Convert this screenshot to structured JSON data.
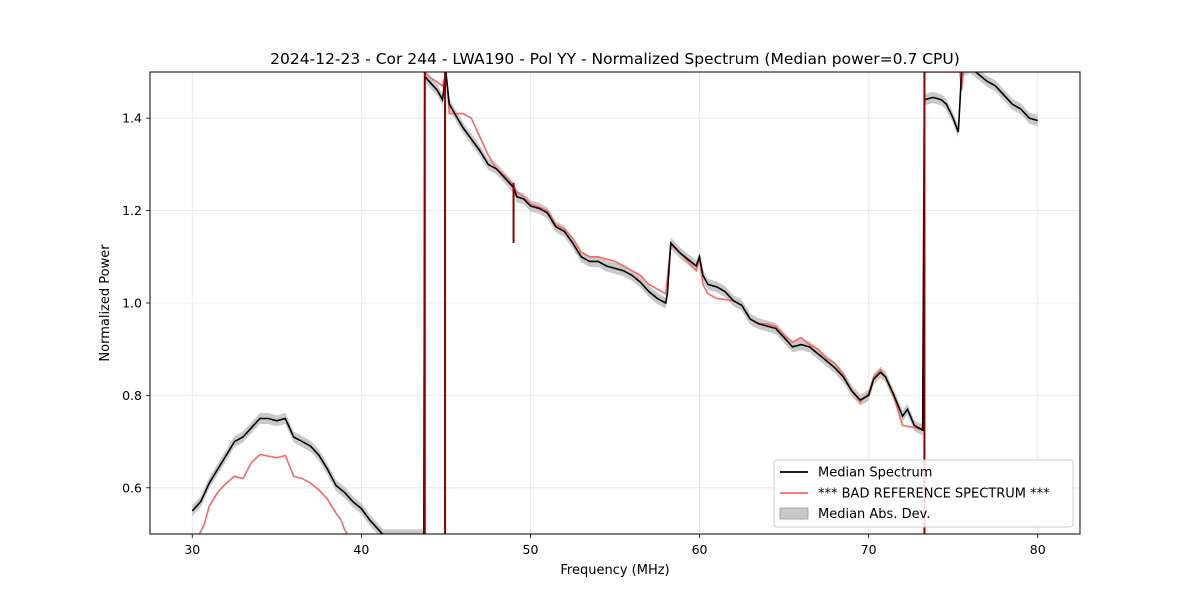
{
  "chart_data": {
    "type": "line",
    "title": "2024-12-23 - Cor 244 - LWA190 - Pol YY - Normalized Spectrum (Median power=0.7 CPU)",
    "xlabel": "Frequency (MHz)",
    "ylabel": "Normalized Power",
    "xlim": [
      27.5,
      82.5
    ],
    "ylim": [
      0.5,
      1.5
    ],
    "xticks": [
      30,
      40,
      50,
      60,
      70,
      80
    ],
    "yticks": [
      0.6,
      0.8,
      1.0,
      1.2,
      1.4
    ],
    "xtick_labels": [
      "30",
      "40",
      "50",
      "60",
      "70",
      "80"
    ],
    "ytick_labels": [
      "0.6",
      "0.8",
      "1.0",
      "1.2",
      "1.4"
    ],
    "grid": true,
    "legend_position": "bottom-right",
    "series": [
      {
        "name": "Median Spectrum",
        "color": "#000000",
        "points": [
          [
            30,
            0.55
          ],
          [
            30.5,
            0.57
          ],
          [
            31,
            0.61
          ],
          [
            31.5,
            0.64
          ],
          [
            32,
            0.67
          ],
          [
            32.5,
            0.7
          ],
          [
            33,
            0.71
          ],
          [
            33.5,
            0.73
          ],
          [
            34,
            0.75
          ],
          [
            34.5,
            0.75
          ],
          [
            35,
            0.745
          ],
          [
            35.5,
            0.75
          ],
          [
            36,
            0.71
          ],
          [
            36.5,
            0.7
          ],
          [
            37,
            0.69
          ],
          [
            37.5,
            0.67
          ],
          [
            38,
            0.64
          ],
          [
            38.5,
            0.605
          ],
          [
            39,
            0.59
          ],
          [
            39.5,
            0.57
          ],
          [
            40,
            0.555
          ],
          [
            40.5,
            0.53
          ],
          [
            41,
            0.51
          ],
          [
            41.3,
            0.498
          ],
          [
            43.7,
            0.498
          ],
          [
            43.75,
            1.49
          ],
          [
            44,
            1.48
          ],
          [
            44.5,
            1.46
          ],
          [
            44.8,
            1.44
          ],
          [
            45,
            1.5
          ],
          [
            45.2,
            1.43
          ],
          [
            46,
            1.38
          ],
          [
            47,
            1.33
          ],
          [
            47.5,
            1.3
          ],
          [
            48,
            1.29
          ],
          [
            48.5,
            1.27
          ],
          [
            49,
            1.25
          ],
          [
            49.2,
            1.23
          ],
          [
            49.6,
            1.225
          ],
          [
            50,
            1.21
          ],
          [
            50.5,
            1.205
          ],
          [
            51,
            1.195
          ],
          [
            51.5,
            1.165
          ],
          [
            52,
            1.155
          ],
          [
            52.5,
            1.13
          ],
          [
            53,
            1.1
          ],
          [
            53.5,
            1.09
          ],
          [
            54,
            1.09
          ],
          [
            54.5,
            1.08
          ],
          [
            55,
            1.075
          ],
          [
            55.5,
            1.07
          ],
          [
            56,
            1.06
          ],
          [
            56.5,
            1.045
          ],
          [
            57,
            1.025
          ],
          [
            57.5,
            1.01
          ],
          [
            58,
            1.0
          ],
          [
            58.1,
            1.02
          ],
          [
            58.3,
            1.13
          ],
          [
            58.8,
            1.11
          ],
          [
            59.3,
            1.095
          ],
          [
            59.8,
            1.08
          ],
          [
            60,
            1.1
          ],
          [
            60.2,
            1.06
          ],
          [
            60.5,
            1.04
          ],
          [
            61,
            1.035
          ],
          [
            61.5,
            1.025
          ],
          [
            62,
            1.005
          ],
          [
            62.5,
            0.995
          ],
          [
            63,
            0.965
          ],
          [
            63.5,
            0.955
          ],
          [
            64,
            0.95
          ],
          [
            64.5,
            0.945
          ],
          [
            65,
            0.925
          ],
          [
            65.5,
            0.905
          ],
          [
            66,
            0.91
          ],
          [
            66.5,
            0.905
          ],
          [
            67,
            0.89
          ],
          [
            67.5,
            0.875
          ],
          [
            68,
            0.86
          ],
          [
            68.5,
            0.84
          ],
          [
            69,
            0.81
          ],
          [
            69.5,
            0.79
          ],
          [
            70,
            0.8
          ],
          [
            70.3,
            0.835
          ],
          [
            70.7,
            0.85
          ],
          [
            71,
            0.84
          ],
          [
            71.5,
            0.8
          ],
          [
            72,
            0.755
          ],
          [
            72.3,
            0.77
          ],
          [
            72.7,
            0.735
          ],
          [
            73.2,
            0.725
          ],
          [
            73.3,
            1.44
          ],
          [
            73.8,
            1.445
          ],
          [
            74.3,
            1.44
          ],
          [
            74.6,
            1.43
          ],
          [
            75,
            1.4
          ],
          [
            75.3,
            1.37
          ],
          [
            75.5,
            1.5
          ],
          [
            76,
            1.51
          ],
          [
            77,
            1.48
          ],
          [
            77.5,
            1.47
          ],
          [
            78,
            1.45
          ],
          [
            78.5,
            1.43
          ],
          [
            79,
            1.42
          ],
          [
            79.5,
            1.4
          ],
          [
            80,
            1.395
          ]
        ]
      },
      {
        "name": "*** BAD REFERENCE SPECTRUM ***",
        "color": "#ff6666",
        "points": [
          [
            30.4,
            0.498
          ],
          [
            30.7,
            0.52
          ],
          [
            31,
            0.56
          ],
          [
            31.5,
            0.59
          ],
          [
            32,
            0.61
          ],
          [
            32.5,
            0.625
          ],
          [
            33,
            0.62
          ],
          [
            33.5,
            0.655
          ],
          [
            34,
            0.672
          ],
          [
            35,
            0.665
          ],
          [
            35.5,
            0.67
          ],
          [
            36,
            0.625
          ],
          [
            36.5,
            0.62
          ],
          [
            37,
            0.61
          ],
          [
            37.5,
            0.595
          ],
          [
            38,
            0.575
          ],
          [
            38.5,
            0.545
          ],
          [
            38.8,
            0.53
          ],
          [
            39,
            0.51
          ],
          [
            39.2,
            0.498
          ],
          [
            43.7,
            0.498
          ],
          [
            43.75,
            1.5
          ],
          [
            44,
            1.49
          ],
          [
            44.8,
            1.47
          ],
          [
            45,
            1.5
          ],
          [
            45.2,
            1.41
          ],
          [
            46,
            1.41
          ],
          [
            46.5,
            1.4
          ],
          [
            47,
            1.36
          ],
          [
            47.5,
            1.32
          ],
          [
            48,
            1.29
          ],
          [
            48.5,
            1.275
          ],
          [
            49,
            1.255
          ],
          [
            49.2,
            1.24
          ],
          [
            49.6,
            1.23
          ],
          [
            50,
            1.215
          ],
          [
            51,
            1.2
          ],
          [
            51.5,
            1.17
          ],
          [
            52,
            1.16
          ],
          [
            52.5,
            1.14
          ],
          [
            53,
            1.11
          ],
          [
            53.5,
            1.1
          ],
          [
            54,
            1.1
          ],
          [
            55,
            1.09
          ],
          [
            55.5,
            1.08
          ],
          [
            56,
            1.07
          ],
          [
            56.5,
            1.06
          ],
          [
            57,
            1.04
          ],
          [
            57.5,
            1.03
          ],
          [
            58,
            1.02
          ],
          [
            58.3,
            1.125
          ],
          [
            58.8,
            1.11
          ],
          [
            59.3,
            1.09
          ],
          [
            59.8,
            1.07
          ],
          [
            60,
            1.095
          ],
          [
            60.2,
            1.04
          ],
          [
            60.5,
            1.02
          ],
          [
            61,
            1.01
          ],
          [
            62,
            1.005
          ],
          [
            62.5,
            0.995
          ],
          [
            63,
            0.965
          ],
          [
            63.5,
            0.955
          ],
          [
            64,
            0.955
          ],
          [
            64.5,
            0.95
          ],
          [
            65,
            0.93
          ],
          [
            65.5,
            0.915
          ],
          [
            66,
            0.925
          ],
          [
            66.5,
            0.91
          ],
          [
            67,
            0.9
          ],
          [
            67.5,
            0.88
          ],
          [
            68,
            0.87
          ],
          [
            68.5,
            0.845
          ],
          [
            69,
            0.81
          ],
          [
            69.5,
            0.785
          ],
          [
            70,
            0.805
          ],
          [
            70.3,
            0.84
          ],
          [
            70.7,
            0.855
          ],
          [
            71,
            0.84
          ],
          [
            71.5,
            0.795
          ],
          [
            72,
            0.735
          ],
          [
            72.7,
            0.73
          ],
          [
            73.2,
            0.725
          ],
          [
            73.3,
            1.5
          ],
          [
            75.4,
            1.5
          ],
          [
            75.5,
            1.46
          ],
          [
            75.6,
            1.5
          ]
        ]
      },
      {
        "name": "Median Abs. Dev.",
        "color": "#bbbbbb",
        "band_width": 0.012
      }
    ],
    "spikes": [
      {
        "x": 43.75,
        "color": "#8b0000"
      },
      {
        "x": 44.95,
        "color": "#8b0000"
      },
      {
        "x": 49.0,
        "color": "#8b0000",
        "y_from": 1.26,
        "y_to": 1.13
      },
      {
        "x": 73.3,
        "color": "#8b0000"
      }
    ],
    "legend": [
      {
        "label": "Median Spectrum",
        "kind": "line",
        "color": "#000000"
      },
      {
        "label": "*** BAD REFERENCE SPECTRUM ***",
        "kind": "line",
        "color": "#ff6666"
      },
      {
        "label": "Median Abs. Dev.",
        "kind": "patch",
        "color": "#c8c8c8"
      }
    ]
  }
}
